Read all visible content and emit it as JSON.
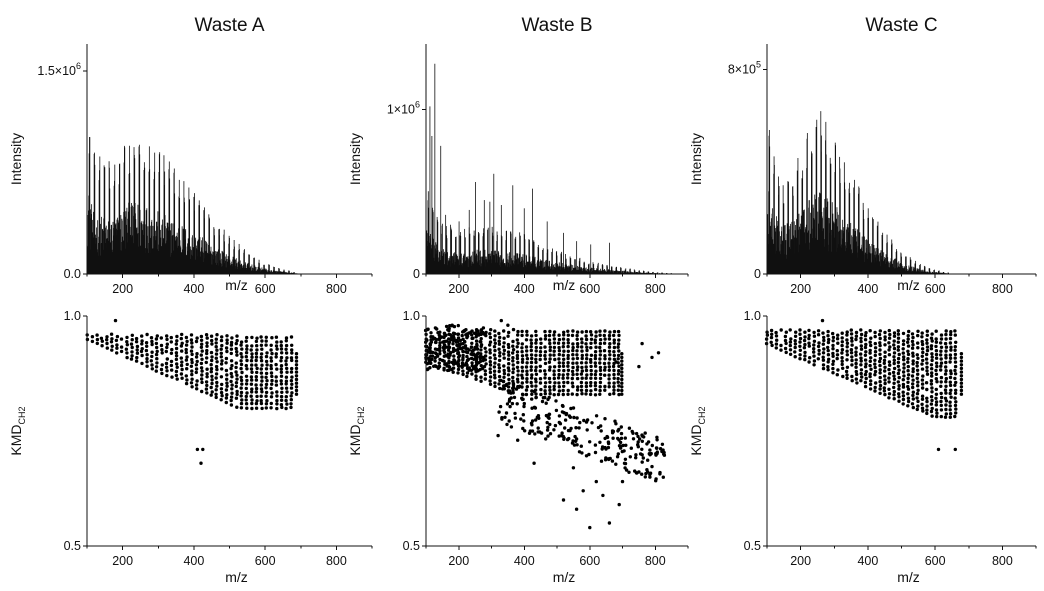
{
  "chart_data": [
    {
      "type": "bar",
      "title": "Waste A",
      "xlabel": "m/z",
      "ylabel": "Intensity",
      "xlim": [
        100,
        900
      ],
      "ylim": [
        0,
        1700000
      ],
      "x_ticks": [
        200,
        400,
        600,
        800
      ],
      "y_ticks": [
        {
          "value": 0,
          "label": "0.0"
        },
        {
          "value": 1500000,
          "label": "1.5×10",
          "exp": "6"
        }
      ],
      "envelope": [
        [
          100,
          1350000
        ],
        [
          120,
          900000
        ],
        [
          150,
          860000
        ],
        [
          180,
          840000
        ],
        [
          210,
          1050000
        ],
        [
          240,
          1070000
        ],
        [
          270,
          1030000
        ],
        [
          300,
          930000
        ],
        [
          340,
          820000
        ],
        [
          380,
          690000
        ],
        [
          420,
          560000
        ],
        [
          460,
          400000
        ],
        [
          500,
          290000
        ],
        [
          540,
          190000
        ],
        [
          580,
          110000
        ],
        [
          620,
          60000
        ],
        [
          660,
          30000
        ],
        [
          690,
          10000
        ]
      ]
    },
    {
      "type": "bar",
      "title": "Waste B",
      "xlabel": "m/z",
      "ylabel": "Intensity",
      "xlim": [
        100,
        900
      ],
      "ylim": [
        0,
        1400000
      ],
      "x_ticks": [
        200,
        400,
        600,
        800
      ],
      "y_ticks": [
        {
          "value": 0,
          "label": "0"
        },
        {
          "value": 1000000,
          "label": "1×10",
          "exp": "6"
        }
      ],
      "envelope": [
        [
          100,
          600000
        ],
        [
          130,
          400000
        ],
        [
          160,
          300000
        ],
        [
          200,
          260000
        ],
        [
          250,
          300000
        ],
        [
          300,
          290000
        ],
        [
          350,
          270000
        ],
        [
          400,
          250000
        ],
        [
          450,
          190000
        ],
        [
          500,
          150000
        ],
        [
          550,
          110000
        ],
        [
          600,
          80000
        ],
        [
          650,
          60000
        ],
        [
          700,
          40000
        ],
        [
          750,
          25000
        ],
        [
          800,
          12000
        ],
        [
          850,
          5000
        ]
      ],
      "peaks": [
        [
          112,
          1020000
        ],
        [
          118,
          840000
        ],
        [
          127,
          1280000
        ],
        [
          145,
          780000
        ],
        [
          160,
          360000
        ],
        [
          175,
          300000
        ],
        [
          201,
          320000
        ],
        [
          232,
          390000
        ],
        [
          251,
          560000
        ],
        [
          278,
          450000
        ],
        [
          295,
          440000
        ],
        [
          307,
          610000
        ],
        [
          330,
          420000
        ],
        [
          365,
          540000
        ],
        [
          400,
          400000
        ],
        [
          425,
          520000
        ],
        [
          470,
          320000
        ],
        [
          520,
          250000
        ],
        [
          560,
          200000
        ],
        [
          603,
          180000
        ],
        [
          660,
          190000
        ]
      ]
    },
    {
      "type": "bar",
      "title": "Waste C",
      "xlabel": "m/z",
      "ylabel": "Intensity",
      "xlim": [
        100,
        900
      ],
      "ylim": [
        0,
        900000
      ],
      "x_ticks": [
        200,
        400,
        600,
        800
      ],
      "y_ticks": [
        {
          "value": 0,
          "label": "0"
        },
        {
          "value": 800000,
          "label": "8×10",
          "exp": "5"
        }
      ],
      "envelope": [
        [
          100,
          760000
        ],
        [
          120,
          480000
        ],
        [
          150,
          380000
        ],
        [
          180,
          430000
        ],
        [
          210,
          530000
        ],
        [
          240,
          630000
        ],
        [
          260,
          640000
        ],
        [
          280,
          600000
        ],
        [
          310,
          520000
        ],
        [
          350,
          400000
        ],
        [
          390,
          300000
        ],
        [
          430,
          210000
        ],
        [
          470,
          140000
        ],
        [
          510,
          80000
        ],
        [
          550,
          45000
        ],
        [
          590,
          20000
        ],
        [
          640,
          6000
        ]
      ]
    },
    {
      "type": "scatter",
      "xlabel": "m/z",
      "ylabel": "KMD",
      "ylabel_sub": "CH2",
      "xlim": [
        100,
        900
      ],
      "ylim": [
        0.5,
        1.0
      ],
      "x_ticks": [
        200,
        400,
        600,
        800
      ],
      "y_ticks": [
        {
          "value": 0.5,
          "label": "0.5"
        },
        {
          "value": 1.0,
          "label": "1.0"
        }
      ],
      "band": {
        "x_start": 100,
        "x_end": 680,
        "upper_start": 0.97,
        "upper_slope": 0.0,
        "lower_start": 0.95,
        "lower_slope": -0.00035,
        "upper_max": 0.96,
        "lower_min": 0.8
      },
      "outliers": [
        [
          180,
          0.99
        ],
        [
          410,
          0.71
        ],
        [
          425,
          0.71
        ],
        [
          420,
          0.68
        ]
      ]
    },
    {
      "type": "scatter",
      "xlabel": "m/z",
      "ylabel": "KMD",
      "ylabel_sub": "CH2",
      "xlim": [
        100,
        900
      ],
      "ylim": [
        0.5,
        1.0
      ],
      "x_ticks": [
        200,
        400,
        600,
        800
      ],
      "y_ticks": [
        {
          "value": 0.5,
          "label": "0.5"
        },
        {
          "value": 1.0,
          "label": "1.0"
        }
      ],
      "band": {
        "x_start": 100,
        "x_end": 690,
        "upper_start": 0.98,
        "upper_slope": 0.0,
        "lower_start": 0.9,
        "lower_slope": -0.00025,
        "upper_max": 0.97,
        "lower_min": 0.83
      },
      "branch": {
        "x_start": 320,
        "x_end": 830,
        "y_start": 0.82,
        "y_end": 0.68,
        "spread": 0.05
      },
      "outliers": [
        [
          600,
          0.54
        ],
        [
          660,
          0.55
        ],
        [
          520,
          0.6
        ],
        [
          580,
          0.62
        ],
        [
          640,
          0.61
        ],
        [
          690,
          0.59
        ],
        [
          430,
          0.68
        ],
        [
          550,
          0.67
        ],
        [
          380,
          0.73
        ],
        [
          320,
          0.74
        ],
        [
          700,
          0.64
        ],
        [
          620,
          0.64
        ],
        [
          680,
          0.9
        ],
        [
          750,
          0.89
        ],
        [
          790,
          0.91
        ],
        [
          810,
          0.92
        ],
        [
          760,
          0.94
        ],
        [
          330,
          0.99
        ],
        [
          350,
          0.98
        ],
        [
          180,
          0.98
        ],
        [
          560,
          0.58
        ]
      ]
    },
    {
      "type": "scatter",
      "xlabel": "m/z",
      "ylabel": "KMD",
      "ylabel_sub": "CH2",
      "xlim": [
        100,
        900
      ],
      "ylim": [
        0.5,
        1.0
      ],
      "x_ticks": [
        200,
        400,
        600,
        800
      ],
      "y_ticks": [
        {
          "value": 0.5,
          "label": "0.5"
        },
        {
          "value": 1.0,
          "label": "1.0"
        }
      ],
      "band": {
        "x_start": 100,
        "x_end": 670,
        "upper_start": 0.97,
        "upper_slope": 0.0,
        "lower_start": 0.94,
        "lower_slope": -0.00032,
        "upper_max": 0.98,
        "lower_min": 0.78
      },
      "outliers": [
        [
          265,
          0.99
        ],
        [
          610,
          0.71
        ],
        [
          660,
          0.71
        ]
      ]
    }
  ]
}
